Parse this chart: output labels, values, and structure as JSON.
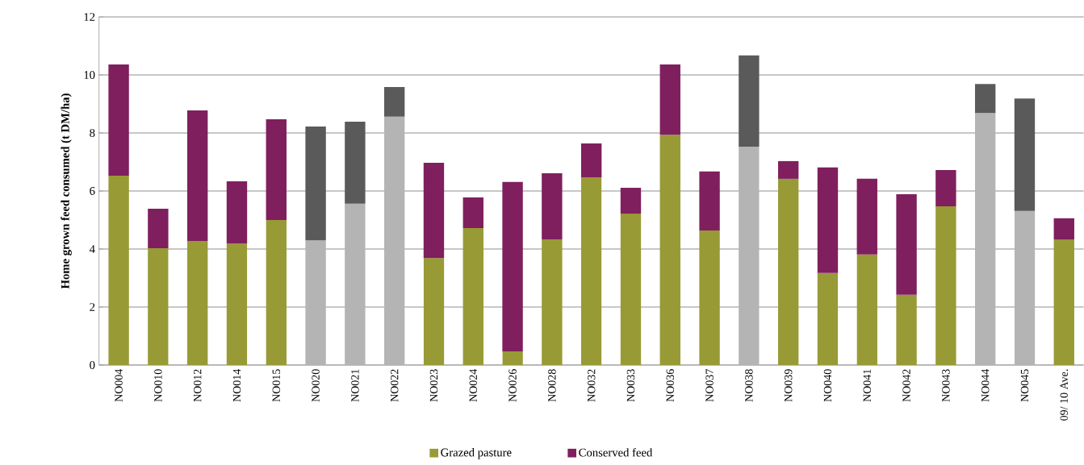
{
  "chart_data": {
    "type": "bar",
    "stacked": true,
    "ylabel": "Home grown feed consumed (t DM/ha)",
    "categories": [
      "NO004",
      "NO010",
      "NO012",
      "NO014",
      "NO015",
      "NO020",
      "NO021",
      "NO022",
      "NO023",
      "NO024",
      "NO026",
      "NO028",
      "NO032",
      "NO033",
      "NO036",
      "NO037",
      "NO038",
      "NO039",
      "NO040",
      "NO041",
      "NO042",
      "NO043",
      "NO044",
      "NO045",
      "09/ 10 Ave."
    ],
    "series": [
      {
        "name": "Grazed pasture",
        "color": "#989a35",
        "values": [
          6.53,
          4.03,
          4.28,
          4.19,
          5.0,
          4.3,
          5.56,
          8.56,
          3.69,
          4.72,
          0.47,
          4.33,
          6.47,
          5.22,
          7.94,
          4.64,
          7.53,
          6.42,
          3.17,
          3.81,
          2.42,
          5.47,
          8.69,
          5.31,
          4.33
        ],
        "colors": [
          "#989a35",
          "#989a35",
          "#989a35",
          "#989a35",
          "#989a35",
          "#b4b4b4",
          "#b4b4b4",
          "#b4b4b4",
          "#989a35",
          "#989a35",
          "#989a35",
          "#989a35",
          "#989a35",
          "#989a35",
          "#989a35",
          "#989a35",
          "#b4b4b4",
          "#989a35",
          "#989a35",
          "#989a35",
          "#989a35",
          "#989a35",
          "#b4b4b4",
          "#b4b4b4",
          "#989a35"
        ]
      },
      {
        "name": "Conserved feed",
        "color": "#7f1f5e",
        "values": [
          3.83,
          1.36,
          4.5,
          2.14,
          3.47,
          3.92,
          2.83,
          1.02,
          3.28,
          1.06,
          5.84,
          2.28,
          1.17,
          0.89,
          2.42,
          2.03,
          3.14,
          0.61,
          3.64,
          2.61,
          3.47,
          1.25,
          1.0,
          3.88,
          0.73
        ],
        "colors": [
          "#7f1f5e",
          "#7f1f5e",
          "#7f1f5e",
          "#7f1f5e",
          "#7f1f5e",
          "#5a5a5a",
          "#5a5a5a",
          "#5a5a5a",
          "#7f1f5e",
          "#7f1f5e",
          "#7f1f5e",
          "#7f1f5e",
          "#7f1f5e",
          "#7f1f5e",
          "#7f1f5e",
          "#7f1f5e",
          "#5a5a5a",
          "#7f1f5e",
          "#7f1f5e",
          "#7f1f5e",
          "#7f1f5e",
          "#7f1f5e",
          "#5a5a5a",
          "#5a5a5a",
          "#7f1f5e"
        ]
      }
    ],
    "ylim": [
      0,
      12
    ],
    "yticks": [
      0,
      2,
      4,
      6,
      8,
      10,
      12
    ],
    "grid": "y",
    "legend": "bottom"
  }
}
